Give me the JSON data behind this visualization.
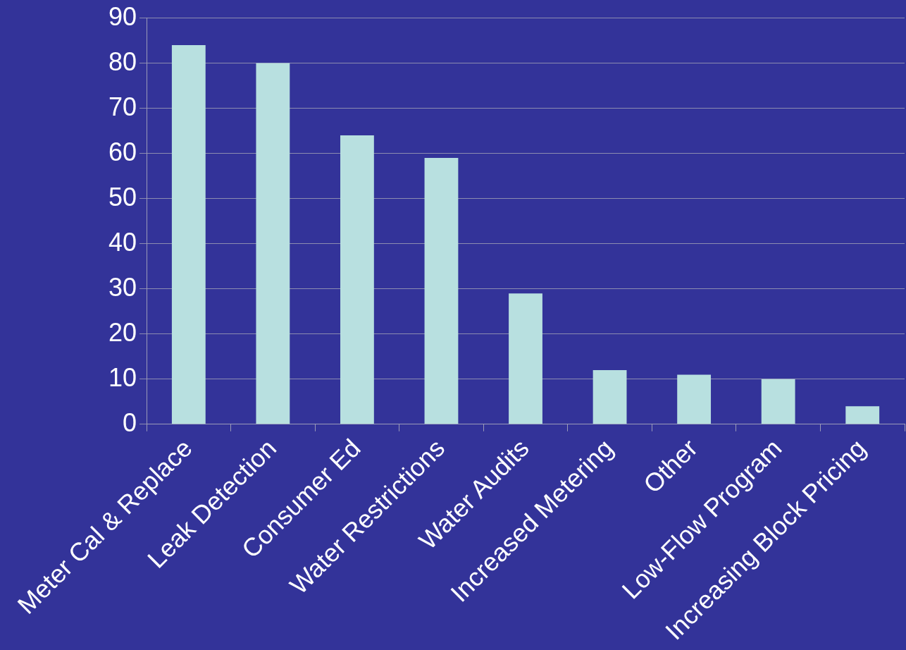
{
  "chart_data": {
    "type": "bar",
    "categories": [
      "Meter Cal & Replace",
      "Leak Detection",
      "Consumer Ed",
      "Water Restrictions",
      "Water Audits",
      "Increased Metering",
      "Other",
      "Low-Flow Program",
      "Increasing Block Pricing"
    ],
    "values": [
      84,
      80,
      64,
      59,
      29,
      12,
      11,
      10,
      4
    ],
    "color": "#b8e0e0",
    "ylim": [
      0,
      90
    ],
    "yticks": [
      0,
      10,
      20,
      30,
      40,
      50,
      60,
      70,
      80,
      90
    ],
    "grid": "y",
    "legend": false
  }
}
